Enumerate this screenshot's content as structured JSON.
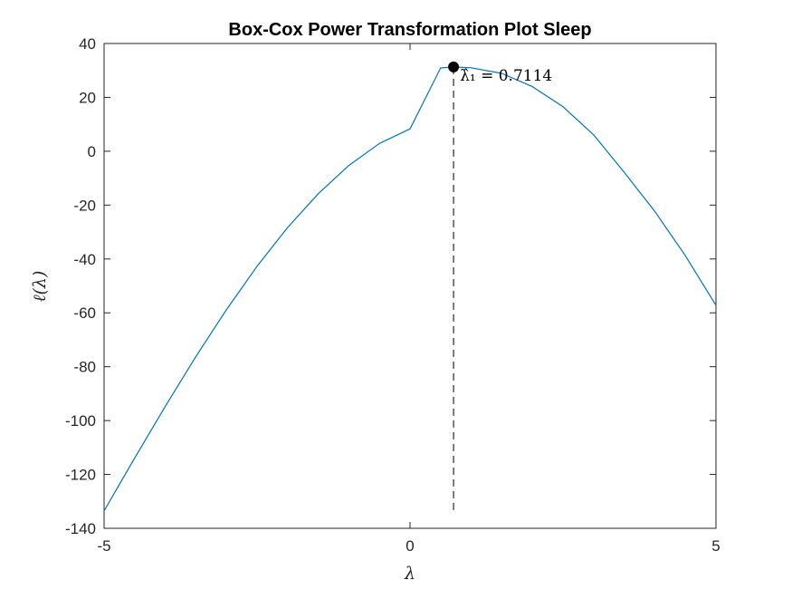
{
  "chart_data": {
    "type": "line",
    "title": "Box-Cox Power Transformation Plot Sleep",
    "xlabel": "λ",
    "ylabel": "ℓ(λ)",
    "xlim": [
      -5,
      5
    ],
    "ylim": [
      -140,
      40
    ],
    "xticks": [
      -5,
      0,
      5
    ],
    "yticks": [
      40,
      20,
      0,
      -20,
      -40,
      -60,
      -80,
      -100,
      -120,
      -140
    ],
    "series": [
      {
        "color": "#0072BD",
        "x": [
          -5,
          -4.5,
          -4,
          -3.5,
          -3,
          -2.5,
          -2,
          -1.5,
          -1,
          -0.5,
          0,
          0.5,
          0.7114,
          1,
          1.5,
          2,
          2.5,
          3,
          3.5,
          4,
          4.5,
          5
        ],
        "y": [
          -133.5,
          -113.9,
          -94.7,
          -76.2,
          -58.8,
          -42.7,
          -28.3,
          -15.8,
          -5.3,
          2.9,
          8.3,
          30.9,
          31.3,
          31.0,
          28.9,
          24.0,
          16.5,
          6.1,
          -7.8,
          -22.3,
          -38.8,
          -57.2
        ]
      }
    ],
    "marker": {
      "x": 0.7114,
      "y": 31.3,
      "color": "#000000"
    },
    "vline": {
      "x": 0.7114,
      "y_from": 31.3,
      "y_to": -134.5,
      "style": "dashed",
      "color": "#262626"
    },
    "annotation": {
      "text": "λ̂₁ = 0.7114",
      "x": 0.7114,
      "y": 31.3
    },
    "grid": false,
    "box": true
  }
}
